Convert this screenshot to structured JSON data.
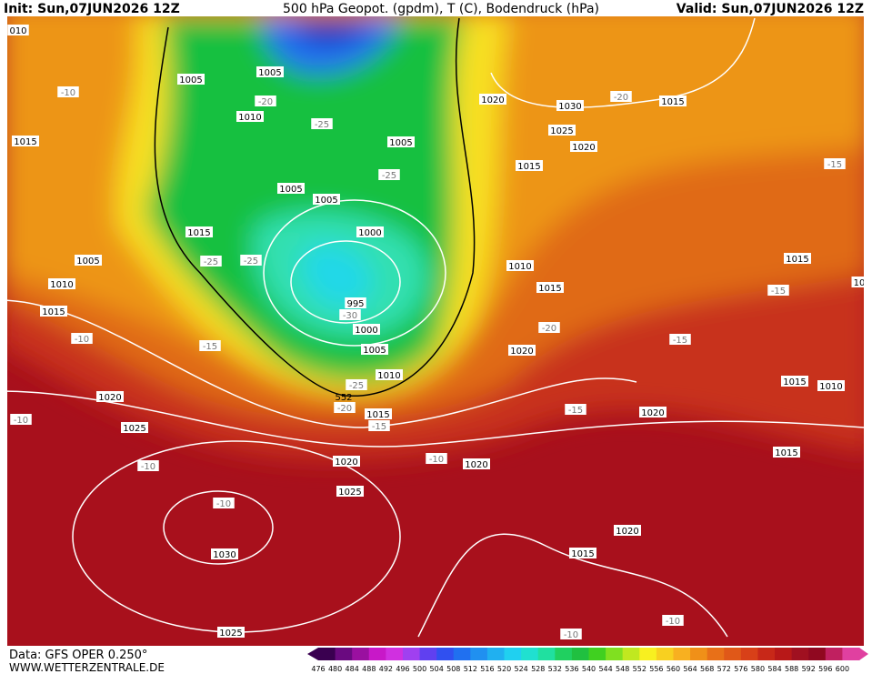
{
  "header": {
    "init": "Init: Sun,07JUN2026 12Z",
    "title": "500 hPa Geopot. (gpdm), T (C), Bodendruck (hPa)",
    "valid": "Valid: Sun,07JUN2026 12Z"
  },
  "footer": {
    "source": "Data: GFS OPER 0.250°",
    "site": "WWW.WETTERZENTRALE.DE"
  },
  "colorbar": [
    476,
    480,
    484,
    488,
    492,
    496,
    500,
    504,
    508,
    512,
    516,
    520,
    524,
    528,
    532,
    536,
    540,
    544,
    548,
    552,
    556,
    560,
    564,
    568,
    572,
    576,
    580,
    584,
    588,
    592,
    596,
    600
  ],
  "labels": [
    "010",
    "1005",
    "1005",
    "-10",
    "-20",
    "1020",
    "1030",
    "-20",
    "1015",
    "1010",
    "-25",
    "1025",
    "1015",
    "1005",
    "1020",
    "1015",
    "-15",
    "-25",
    "1005",
    "1005",
    "1015",
    "1000",
    "-25",
    "-25",
    "1005",
    "1010",
    "1015",
    "1010",
    "1015",
    "-15",
    "10",
    "995",
    "-30",
    "1015",
    "-20",
    "1000",
    "-10",
    "-15",
    "1020",
    "-15",
    "1005",
    "1010",
    "1015",
    "1010",
    "-25",
    "552",
    "1020",
    "-20",
    "1015",
    "-15",
    "1020",
    "-15",
    "-10",
    "1025",
    "1015",
    "-10",
    "1020",
    "1020",
    "-10",
    "1025",
    "-10",
    "1020",
    "1030",
    "1015",
    "-10",
    "-10",
    "1025"
  ]
}
